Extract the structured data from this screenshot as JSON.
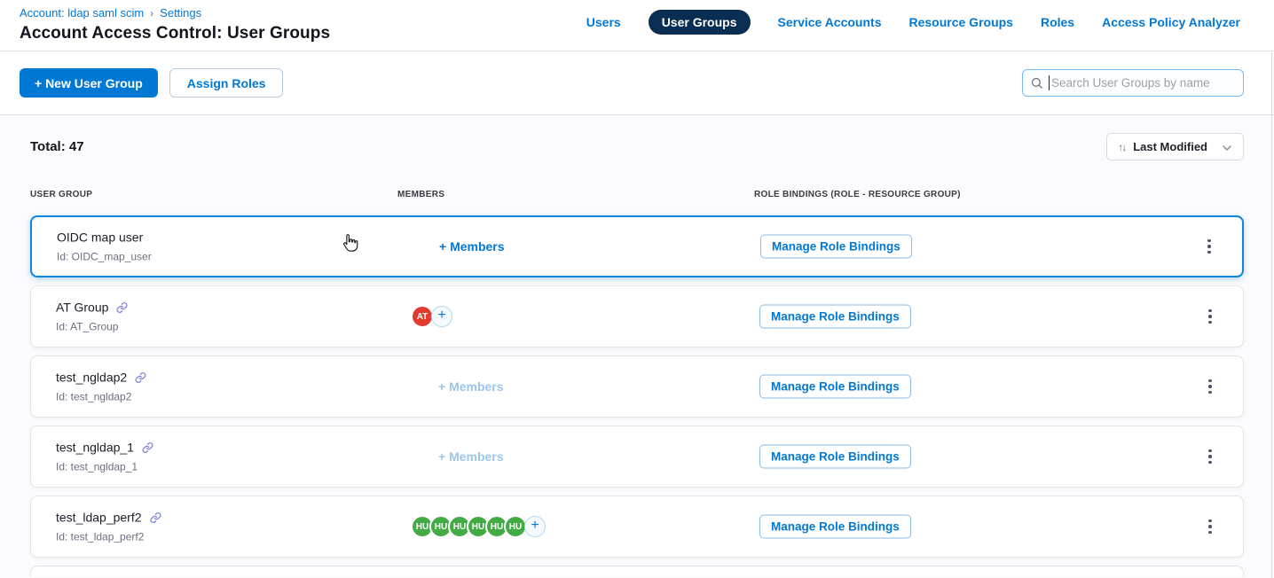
{
  "breadcrumb": {
    "account_link": "Account: ldap saml scim",
    "separator": "›",
    "settings_link": "Settings"
  },
  "page_title": "Account Access Control: User Groups",
  "nav": {
    "items": [
      {
        "label": "Users",
        "active": false
      },
      {
        "label": "User Groups",
        "active": true
      },
      {
        "label": "Service Accounts",
        "active": false
      },
      {
        "label": "Resource Groups",
        "active": false
      },
      {
        "label": "Roles",
        "active": false
      },
      {
        "label": "Access Policy Analyzer",
        "active": false
      }
    ]
  },
  "toolbar": {
    "new_user_group_label": "+ New User Group",
    "assign_roles_label": "Assign Roles",
    "search_placeholder": "Search User Groups by name"
  },
  "summary": {
    "total_label": "Total: 47"
  },
  "sort": {
    "label": "Last Modified",
    "arrows_glyph": "↑↓"
  },
  "table": {
    "headers": [
      "USER GROUP",
      "MEMBERS",
      "ROLE BINDINGS (ROLE - RESOURCE GROUP)"
    ],
    "members_link_label": "+ Members",
    "manage_role_bindings_label": "Manage Role Bindings",
    "rows": [
      {
        "name": "OIDC map user",
        "id_text": "Id: OIDC_map_user",
        "has_link_icon": false,
        "selected": true,
        "members": {
          "type": "add-link",
          "enabled": true
        }
      },
      {
        "name": "AT Group",
        "id_text": "Id: AT_Group",
        "has_link_icon": true,
        "selected": false,
        "members": {
          "type": "avatars",
          "show_add_button": true,
          "avatars": [
            {
              "initials": "AT",
              "color": "#e23b2e"
            }
          ]
        }
      },
      {
        "name": "test_ngldap2",
        "id_text": "Id: test_ngldap2",
        "has_link_icon": true,
        "selected": false,
        "members": {
          "type": "add-link",
          "enabled": false
        }
      },
      {
        "name": "test_ngldap_1",
        "id_text": "Id: test_ngldap_1",
        "has_link_icon": true,
        "selected": false,
        "members": {
          "type": "add-link",
          "enabled": false
        }
      },
      {
        "name": "test_ldap_perf2",
        "id_text": "Id: test_ldap_perf2",
        "has_link_icon": true,
        "selected": false,
        "members": {
          "type": "avatars",
          "show_add_button": true,
          "avatars": [
            {
              "initials": "HU",
              "color": "#42ab45"
            },
            {
              "initials": "HU",
              "color": "#42ab45"
            },
            {
              "initials": "HU",
              "color": "#42ab45"
            },
            {
              "initials": "HU",
              "color": "#42ab45"
            },
            {
              "initials": "HU",
              "color": "#42ab45"
            },
            {
              "initials": "HU",
              "color": "#42ab45"
            }
          ]
        }
      }
    ]
  },
  "colors": {
    "primary_blue": "#0278d5",
    "active_pill_navy": "#0a2e52",
    "selected_row_border": "#0b87dd",
    "avatar_red": "#e23b2e",
    "avatar_green": "#42ab45",
    "disabled_link_blue": "#9cc6ec",
    "link_icon_lavender": "#7c83db"
  }
}
